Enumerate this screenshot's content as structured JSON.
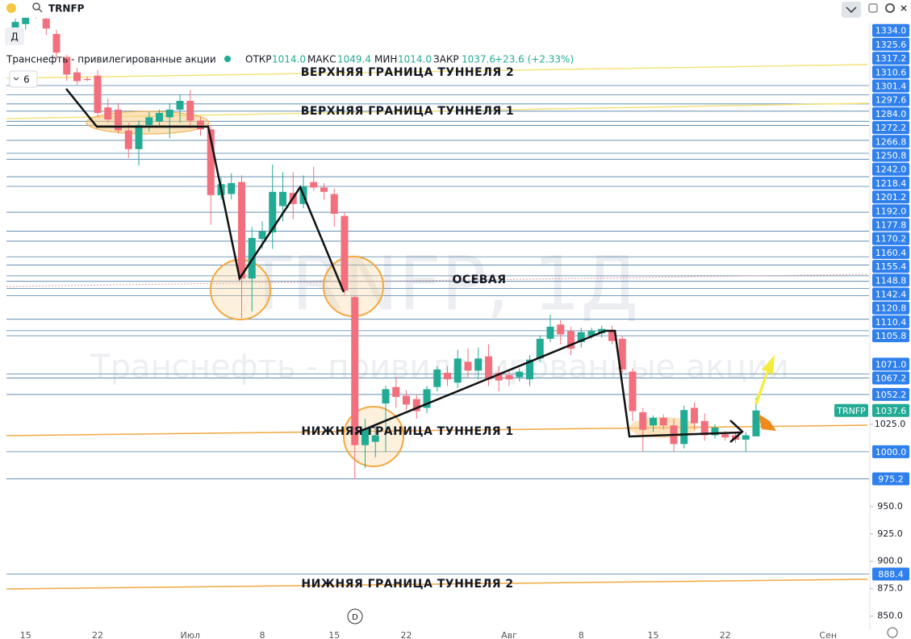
{
  "header": {
    "symbol": "TRNFP",
    "interval": "Д",
    "name": "Транснефть - привилегированные акции",
    "open_label": "ОТКР",
    "open": "1014.0",
    "high_label": "МАКС",
    "high": "1049.4",
    "low_label": "МИН",
    "low": "1014.0",
    "close_label": "ЗАКР",
    "close": "1037.6",
    "change": "+23.6 (+2.33%)",
    "indicators": "6"
  },
  "chart_data": {
    "type": "candlestick",
    "watermark": "TRNFP, 1Д",
    "watermark_name": "Транснефть - привилегированные акции",
    "symbol_tag": "TRNFP",
    "up_color": "#22ab94",
    "down_color": "#f2707d",
    "level_color": "#4f7fa6",
    "level_label_color": "#2f80ed",
    "ylim": [
      838,
      1412
    ],
    "yticks": [
      {
        "value": 850,
        "label": "850.0"
      },
      {
        "value": 875,
        "label": "875.0"
      },
      {
        "value": 900,
        "label": "900.0"
      },
      {
        "value": 925,
        "label": "925.0"
      },
      {
        "value": 950,
        "label": "950.0"
      },
      {
        "value": 1025,
        "label": "1025.0"
      }
    ],
    "levels": [
      {
        "value": 888.4,
        "label": "888.4"
      },
      {
        "value": 975.2,
        "label": "975.2"
      },
      {
        "value": 1000,
        "label": "1000.0"
      },
      {
        "value": 1052.2,
        "label": "1052.2"
      },
      {
        "value": 1067.2,
        "label": "1067.2"
      },
      {
        "value": 1071,
        "label": "1071.0"
      },
      {
        "value": 1105.8,
        "label": "1105.8"
      },
      {
        "value": 1110.4,
        "label": "1110.4"
      },
      {
        "value": 1120.8,
        "label": "1120.8"
      },
      {
        "value": 1142.4,
        "label": "1142.4"
      },
      {
        "value": 1148.8,
        "label": "1148.8"
      },
      {
        "value": 1155.4,
        "label": "1155.4"
      },
      {
        "value": 1160.4,
        "label": "1160.4"
      },
      {
        "value": 1170.2,
        "label": "1170.2"
      },
      {
        "value": 1177.8,
        "label": "1177.8"
      },
      {
        "value": 1192,
        "label": "1192.0"
      },
      {
        "value": 1201.2,
        "label": "1201.2"
      },
      {
        "value": 1218.4,
        "label": "1218.4"
      },
      {
        "value": 1242,
        "label": "1242.0"
      },
      {
        "value": 1250.8,
        "label": "1250.8"
      },
      {
        "value": 1266.8,
        "label": "1266.8"
      },
      {
        "value": 1272.2,
        "label": "1272.2"
      },
      {
        "value": 1284,
        "label": "1284.0"
      },
      {
        "value": 1297.6,
        "label": "1297.6"
      },
      {
        "value": 1301.4,
        "label": "1301.4"
      },
      {
        "value": 1310.6,
        "label": "1310.6"
      },
      {
        "value": 1317.2,
        "label": "1317.2"
      },
      {
        "value": 1325.6,
        "label": "1325.6"
      },
      {
        "value": 1334,
        "label": "1334.0"
      }
    ],
    "annotations": [
      "ВЕРХНЯЯ ГРАНИЦА ТУННЕЛЯ 2",
      "ВЕРХНЯЯ ГРАНИЦА ТУННЕЛЯ 1",
      "ОСЕВАЯ",
      "НИЖНЯЯ ГРАНИЦА ТУННЕЛЯ 1",
      "НИЖНЯЯ ГРАНИЦА ТУННЕЛЯ 2"
    ],
    "categories": [
      null,
      "15",
      null,
      null,
      null,
      null,
      null,
      null,
      "22",
      null,
      null,
      null,
      null,
      null,
      null,
      null,
      null,
      "Июл",
      null,
      null,
      null,
      null,
      null,
      null,
      "8",
      null,
      null,
      null,
      null,
      null,
      null,
      "15",
      null,
      null,
      null,
      null,
      null,
      null,
      "22",
      null,
      null,
      null,
      null,
      null,
      null,
      null,
      null,
      null,
      "Авг",
      null,
      null,
      null,
      null,
      null,
      null,
      "8",
      null,
      null,
      null,
      null,
      null,
      null,
      "15",
      null,
      null,
      null,
      null,
      null,
      null,
      "22",
      null,
      null,
      null,
      null,
      null,
      null,
      null,
      null,
      null,
      "Сен",
      null,
      null,
      null
    ],
    "candles": [
      [
        1385,
        1395,
        1382,
        1392
      ],
      [
        1390,
        1400,
        1385,
        1398
      ],
      [
        1406,
        1410,
        1395,
        1398
      ],
      [
        1395,
        1400,
        1380,
        1386
      ],
      [
        1381,
        1385,
        1358,
        1364
      ],
      [
        1360,
        1362,
        1338,
        1344
      ],
      [
        1346,
        1350,
        1335,
        1338
      ],
      [
        1340,
        1342,
        1338,
        1339
      ],
      [
        1343,
        1348,
        1305,
        1309
      ],
      [
        1314,
        1322,
        1300,
        1303
      ],
      [
        1312,
        1318,
        1290,
        1293
      ],
      [
        1293,
        1300,
        1268,
        1276
      ],
      [
        1276,
        1302,
        1261,
        1298
      ],
      [
        1298,
        1310,
        1292,
        1305
      ],
      [
        1301,
        1312,
        1296,
        1309
      ],
      [
        1305,
        1318,
        1286,
        1312
      ],
      [
        1312,
        1326,
        1300,
        1320
      ],
      [
        1320,
        1330,
        1295,
        1302
      ],
      [
        1302,
        1306,
        1288,
        1294
      ],
      [
        1294,
        1298,
        1207,
        1234
      ],
      [
        1234,
        1250,
        1230,
        1244
      ],
      [
        1235,
        1254,
        1230,
        1245
      ],
      [
        1246,
        1252,
        1122,
        1158
      ],
      [
        1158,
        1205,
        1128,
        1195
      ],
      [
        1194,
        1210,
        1185,
        1201
      ],
      [
        1200,
        1262,
        1185,
        1237
      ],
      [
        1224,
        1255,
        1210,
        1237
      ],
      [
        1236,
        1255,
        1212,
        1226
      ],
      [
        1226,
        1252,
        1222,
        1242
      ],
      [
        1246,
        1260,
        1238,
        1241
      ],
      [
        1241,
        1245,
        1230,
        1237
      ],
      [
        1235,
        1240,
        1205,
        1217
      ],
      [
        1215,
        1218,
        1143,
        1147
      ],
      [
        1141,
        1142,
        975,
        1006
      ],
      [
        1006,
        1030,
        985,
        1021
      ],
      [
        1009,
        1025,
        995,
        1015
      ],
      [
        1044,
        1060,
        1000,
        1057
      ],
      [
        1059,
        1068,
        1040,
        1050
      ],
      [
        1051,
        1056,
        1038,
        1043
      ],
      [
        1048,
        1052,
        1030,
        1037
      ],
      [
        1040,
        1060,
        1035,
        1057
      ],
      [
        1059,
        1078,
        1055,
        1075
      ],
      [
        1072,
        1078,
        1060,
        1066
      ],
      [
        1063,
        1093,
        1058,
        1085
      ],
      [
        1082,
        1094,
        1068,
        1074
      ],
      [
        1074,
        1095,
        1066,
        1085
      ],
      [
        1087,
        1098,
        1060,
        1066
      ],
      [
        1072,
        1078,
        1055,
        1065
      ],
      [
        1070,
        1075,
        1060,
        1066
      ],
      [
        1068,
        1076,
        1064,
        1073
      ],
      [
        1066,
        1088,
        1060,
        1084
      ],
      [
        1085,
        1106,
        1082,
        1103
      ],
      [
        1103,
        1125,
        1100,
        1114
      ],
      [
        1116,
        1120,
        1098,
        1107
      ],
      [
        1110,
        1114,
        1088,
        1094
      ],
      [
        1100,
        1113,
        1095,
        1109
      ],
      [
        1106,
        1113,
        1103,
        1110
      ],
      [
        1108,
        1115,
        1104,
        1112
      ],
      [
        1110,
        1115,
        1098,
        1101
      ],
      [
        1103,
        1106,
        1072,
        1075
      ],
      [
        1073,
        1076,
        1028,
        1037
      ],
      [
        1036,
        1040,
        1000,
        1020
      ],
      [
        1024,
        1033,
        1018,
        1031
      ],
      [
        1031,
        1034,
        1020,
        1024
      ],
      [
        1024,
        1030,
        1000,
        1007
      ],
      [
        1007,
        1042,
        1003,
        1038
      ],
      [
        1040,
        1045,
        1020,
        1026
      ],
      [
        1028,
        1035,
        1010,
        1015
      ],
      [
        1015,
        1025,
        1012,
        1022
      ],
      [
        1016,
        1019,
        1010,
        1013
      ],
      [
        1015,
        1018,
        1008,
        1011
      ],
      [
        1011,
        1018,
        1000,
        1015
      ],
      [
        1014,
        1049.4,
        1014,
        1037.6
      ],
      null,
      null,
      null,
      null,
      null,
      null,
      null,
      null,
      null,
      null
    ]
  }
}
